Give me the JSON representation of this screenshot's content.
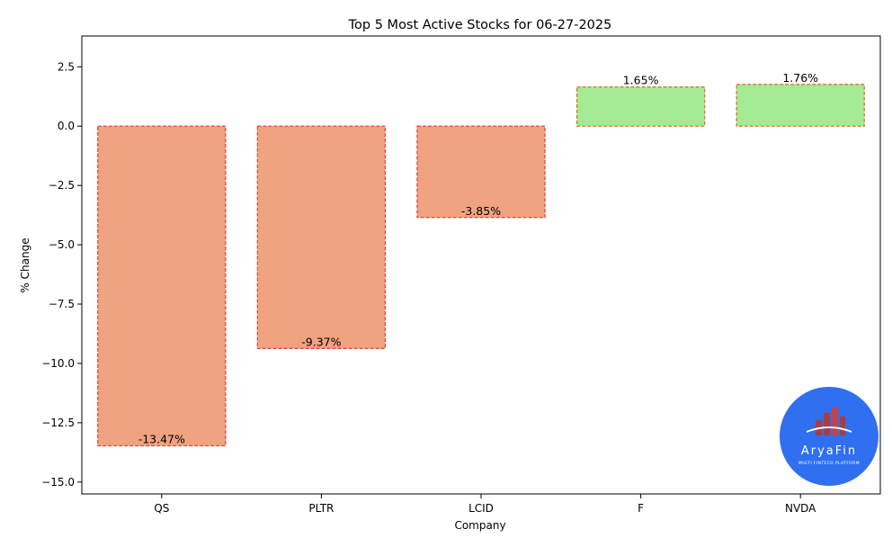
{
  "chart_data": {
    "type": "bar",
    "title": "Top 5 Most Active Stocks for 06-27-2025",
    "xlabel": "Company",
    "ylabel": "% Change",
    "categories": [
      "QS",
      "PLTR",
      "LCID",
      "F",
      "NVDA"
    ],
    "values": [
      -13.47,
      -9.37,
      -3.85,
      1.65,
      1.76
    ],
    "data_labels": [
      "-13.47%",
      "-9.37%",
      "-3.85%",
      "1.65%",
      "1.76%"
    ],
    "ylim": [
      -15.5,
      3.8
    ],
    "yticks": [
      2.5,
      0.0,
      -2.5,
      -5.0,
      -7.5,
      -10.0,
      -12.5,
      -15.0
    ],
    "ytick_labels": [
      "2.5",
      "0.0",
      "−2.5",
      "−5.0",
      "−7.5",
      "−10.0",
      "−12.5",
      "−15.0"
    ],
    "grid": false,
    "colors": {
      "negative_fill": "#f0a380",
      "positive_fill": "#a4eb94",
      "negative_edge": "#e0473a",
      "positive_edge": "#d9782a"
    }
  },
  "logo": {
    "name": "AryaFin",
    "tagline": "MULTI FINTECH PLATFORM",
    "bg_color": "#2f6ff0"
  }
}
